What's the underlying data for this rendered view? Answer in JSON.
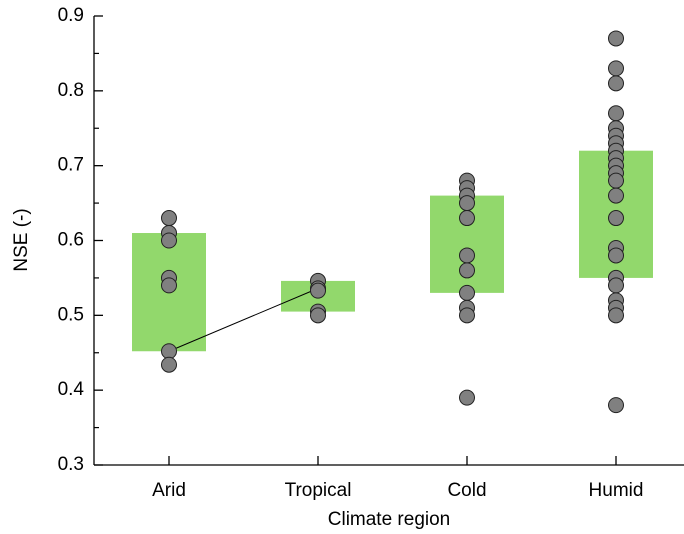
{
  "chart_data": {
    "type": "strip",
    "x_label": "Climate region",
    "y_label": "NSE (-)",
    "categories": [
      "Arid",
      "Tropical",
      "Cold",
      "Humid"
    ],
    "box_color": "#92d86c",
    "point_color": "#808080",
    "boxes": [
      {
        "low": 0.452,
        "high": 0.61
      },
      {
        "low": 0.505,
        "high": 0.546
      },
      {
        "low": 0.53,
        "high": 0.66
      },
      {
        "low": 0.55,
        "high": 0.72
      }
    ],
    "points": [
      [
        0.63,
        0.61,
        0.6,
        0.55,
        0.54,
        0.452,
        0.434
      ],
      [
        0.546,
        0.536,
        0.533,
        0.505,
        0.5
      ],
      [
        0.68,
        0.67,
        0.66,
        0.65,
        0.63,
        0.58,
        0.56,
        0.53,
        0.51,
        0.5,
        0.39
      ],
      [
        0.87,
        0.83,
        0.81,
        0.77,
        0.75,
        0.74,
        0.73,
        0.72,
        0.71,
        0.7,
        0.69,
        0.68,
        0.66,
        0.63,
        0.59,
        0.58,
        0.55,
        0.54,
        0.52,
        0.51,
        0.5,
        0.38
      ]
    ],
    "ylim": [
      0.3,
      0.9
    ],
    "yticks": [
      0.3,
      0.4,
      0.5,
      0.6,
      0.7,
      0.8,
      0.9
    ],
    "yminorticks": [
      0.35,
      0.45,
      0.55,
      0.65,
      0.75,
      0.85
    ]
  }
}
